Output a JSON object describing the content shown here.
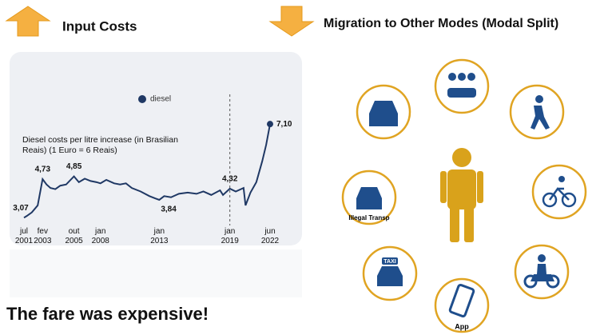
{
  "header": {
    "left": "Input Costs",
    "right": "Migration to Other Modes (Modal Split)"
  },
  "chart_data": {
    "type": "line",
    "subtitle": "Diesel costs per litre increase (in Brasilian Reais) (1 Euro = 6 Reais)",
    "legend": "diesel",
    "color": "#1f3864",
    "ylim": [
      2.6,
      8.0
    ],
    "xlim": [
      "2001-07",
      "2022-06"
    ],
    "vline": "2019-01",
    "xticks": [
      {
        "value": "2001-07",
        "label": "jul 2001"
      },
      {
        "value": "2003-02",
        "label": "fev 2003"
      },
      {
        "value": "2005-10",
        "label": "out 2005"
      },
      {
        "value": "2008-01",
        "label": "jan 2008"
      },
      {
        "value": "2013-01",
        "label": "jan 2013"
      },
      {
        "value": "2019-01",
        "label": "jan 2019"
      },
      {
        "value": "2022-06",
        "label": "jun 2022"
      }
    ],
    "x": [
      "2001-07",
      "2001-10",
      "2002-03",
      "2002-09",
      "2003-02",
      "2003-06",
      "2003-10",
      "2004-03",
      "2004-08",
      "2005-02",
      "2005-10",
      "2006-03",
      "2006-09",
      "2007-03",
      "2007-09",
      "2008-01",
      "2008-07",
      "2009-03",
      "2009-09",
      "2010-03",
      "2010-09",
      "2011-06",
      "2012-03",
      "2012-09",
      "2013-01",
      "2013-06",
      "2014-01",
      "2014-09",
      "2015-06",
      "2016-03",
      "2016-10",
      "2017-06",
      "2018-03",
      "2018-06",
      "2019-01",
      "2019-07",
      "2020-03",
      "2020-05",
      "2020-10",
      "2021-04",
      "2021-10",
      "2022-02",
      "2022-06"
    ],
    "values": [
      3.07,
      3.15,
      3.3,
      3.6,
      4.73,
      4.5,
      4.35,
      4.3,
      4.45,
      4.5,
      4.85,
      4.6,
      4.75,
      4.65,
      4.6,
      4.55,
      4.7,
      4.55,
      4.5,
      4.55,
      4.35,
      4.2,
      4.0,
      3.9,
      3.84,
      4.0,
      3.95,
      4.1,
      4.15,
      4.1,
      4.2,
      4.05,
      4.25,
      4.05,
      4.32,
      4.2,
      4.35,
      3.6,
      4.15,
      4.6,
      5.5,
      6.2,
      7.1
    ],
    "value_labels": [
      "3,07",
      null,
      null,
      null,
      "4,73",
      null,
      null,
      null,
      null,
      null,
      "4,85",
      null,
      null,
      null,
      null,
      null,
      null,
      null,
      null,
      null,
      null,
      null,
      null,
      null,
      "3,84",
      null,
      null,
      null,
      null,
      null,
      null,
      null,
      null,
      null,
      "4,32",
      null,
      null,
      null,
      null,
      null,
      null,
      null,
      "7,10"
    ]
  },
  "diagram": {
    "modes": [
      "Illegal Transp",
      "TAXI",
      "App"
    ]
  },
  "footer": "The fare was expensive!"
}
